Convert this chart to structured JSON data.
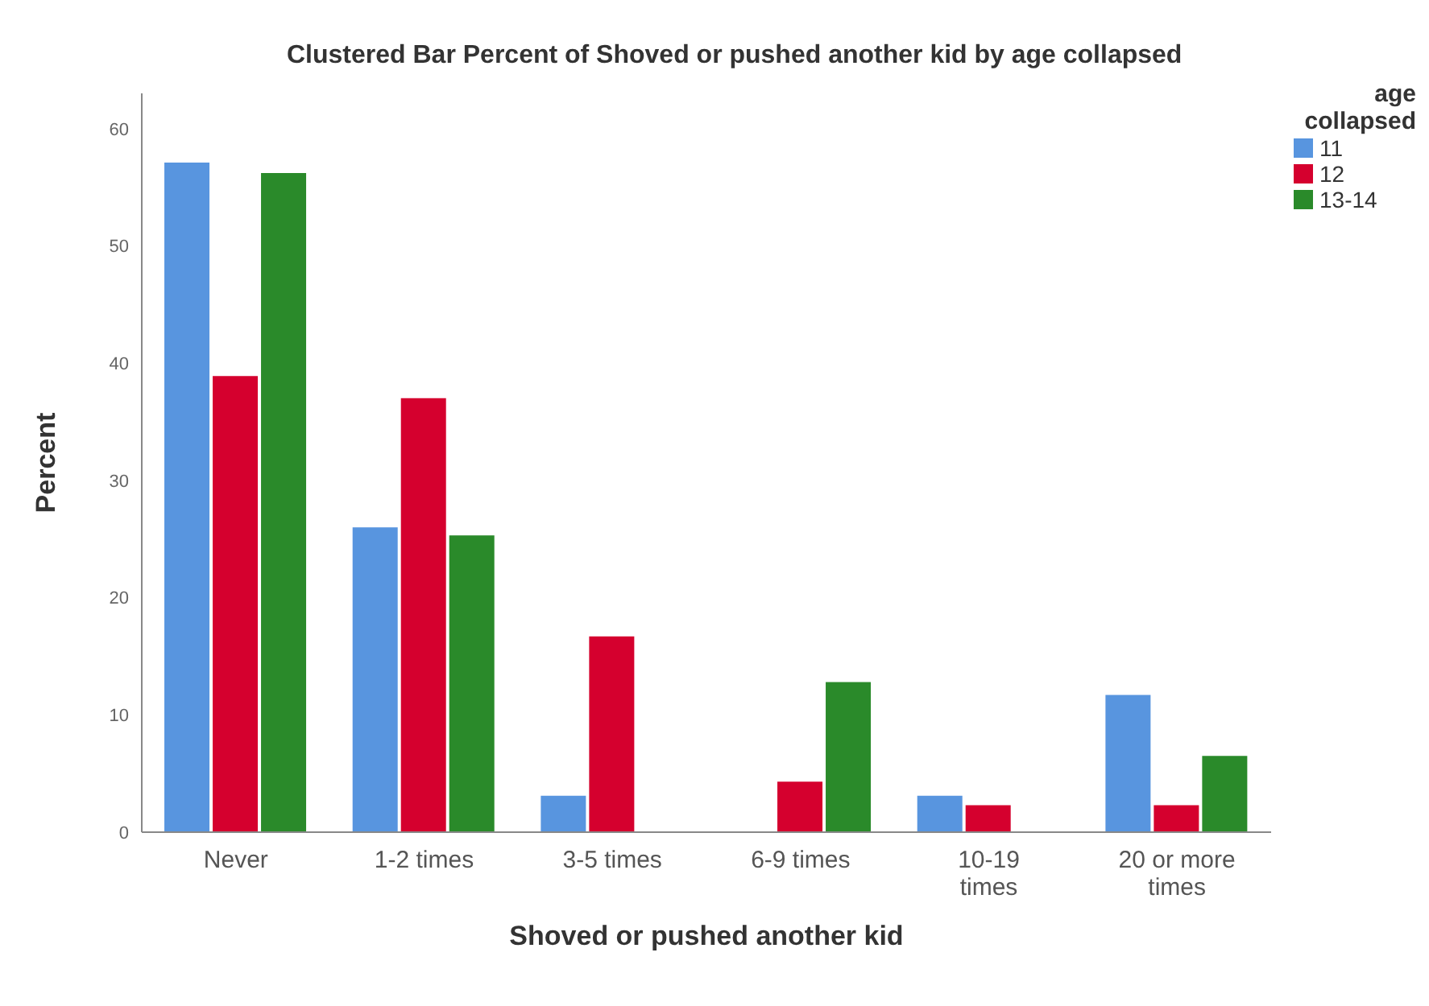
{
  "chart_data": {
    "type": "bar",
    "title": "Clustered Bar Percent of Shoved or pushed another kid by age collapsed",
    "xlabel": "Shoved or pushed another kid",
    "ylabel": "Percent",
    "legend_title": "age collapsed",
    "categories": [
      "Never",
      "1-2 times",
      "3-5 times",
      "6-9 times",
      "10-19 times",
      "20 or more times"
    ],
    "series": [
      {
        "name": "11",
        "color": "#5895df",
        "values": [
          57.1,
          26.0,
          3.1,
          0,
          3.1,
          11.7
        ]
      },
      {
        "name": "12",
        "color": "#d5002e",
        "values": [
          38.9,
          37.0,
          16.7,
          4.3,
          2.3,
          2.3
        ]
      },
      {
        "name": "13-14",
        "color": "#2a8a2a",
        "values": [
          56.2,
          25.3,
          0,
          12.8,
          0,
          6.5
        ]
      }
    ],
    "ylim": [
      0,
      63
    ],
    "yticks": [
      0,
      10,
      20,
      30,
      40,
      50,
      60
    ],
    "grid": false,
    "legend": "top right"
  }
}
